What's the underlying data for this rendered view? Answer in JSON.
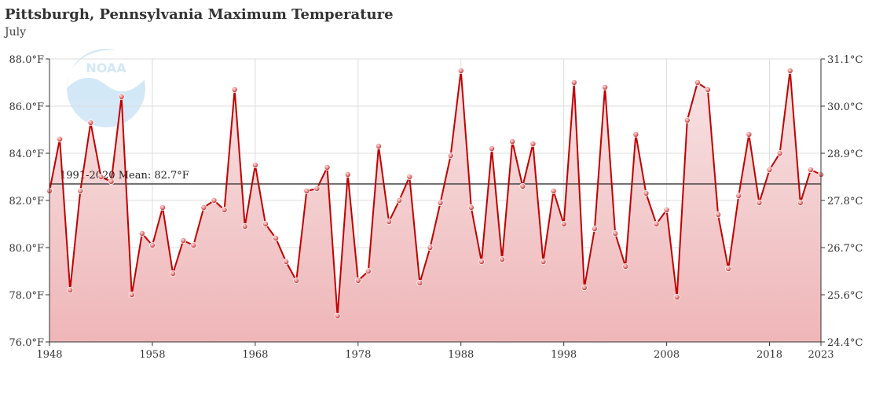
{
  "chart_data": {
    "type": "area",
    "title": "Pittsburgh, Pennsylvania Maximum Temperature",
    "subtitle": "July",
    "mean_label": "1991-2020 Mean: 82.7°F",
    "mean_value": 82.7,
    "y_left_ticks": [
      "76.0°F",
      "78.0°F",
      "80.0°F",
      "82.0°F",
      "84.0°F",
      "86.0°F",
      "88.0°F"
    ],
    "y_right_ticks": [
      "24.4°C",
      "25.6°C",
      "26.7°C",
      "27.8°C",
      "28.9°C",
      "30.0°C",
      "31.1°C"
    ],
    "x_ticks": [
      "1948",
      "1958",
      "1968",
      "1978",
      "1988",
      "1998",
      "2008",
      "2018",
      "2023"
    ],
    "xlim": [
      1948,
      2023
    ],
    "ylim": [
      76,
      88
    ],
    "grid": true,
    "colors": {
      "line": "#c00000",
      "fill_top": "#f7e3e4",
      "fill_bottom": "#efb6b8",
      "mean": "#444444",
      "grid": "#dddddd"
    },
    "x": [
      1948,
      1949,
      1950,
      1951,
      1952,
      1953,
      1954,
      1955,
      1956,
      1957,
      1958,
      1959,
      1960,
      1961,
      1962,
      1963,
      1964,
      1965,
      1966,
      1967,
      1968,
      1969,
      1970,
      1971,
      1972,
      1973,
      1974,
      1975,
      1976,
      1977,
      1978,
      1979,
      1980,
      1981,
      1982,
      1983,
      1984,
      1985,
      1986,
      1987,
      1988,
      1989,
      1990,
      1991,
      1992,
      1993,
      1994,
      1995,
      1996,
      1997,
      1998,
      1999,
      2000,
      2001,
      2002,
      2003,
      2004,
      2005,
      2006,
      2007,
      2008,
      2009,
      2010,
      2011,
      2012,
      2013,
      2014,
      2015,
      2016,
      2017,
      2018,
      2019,
      2020,
      2021,
      2022,
      2023
    ],
    "values": [
      82.4,
      84.6,
      78.2,
      82.4,
      85.3,
      83.0,
      82.8,
      86.4,
      78.0,
      80.6,
      80.1,
      81.7,
      78.9,
      80.3,
      80.1,
      81.7,
      82.0,
      81.6,
      86.7,
      80.9,
      83.5,
      81.0,
      80.4,
      79.4,
      78.6,
      82.4,
      82.5,
      83.4,
      77.1,
      83.1,
      78.6,
      79.0,
      84.3,
      81.1,
      82.0,
      83.0,
      78.5,
      80.0,
      81.9,
      83.9,
      87.5,
      81.7,
      79.4,
      84.2,
      79.5,
      84.5,
      82.6,
      84.4,
      79.4,
      82.4,
      81.0,
      87.0,
      78.3,
      80.8,
      86.8,
      80.6,
      79.2,
      84.8,
      82.3,
      81.0,
      81.6,
      77.9,
      85.4,
      87.0,
      86.7,
      81.4,
      79.1,
      82.2,
      84.8,
      81.9,
      83.3,
      84.0,
      87.5,
      81.9,
      83.3,
      83.1
    ]
  }
}
